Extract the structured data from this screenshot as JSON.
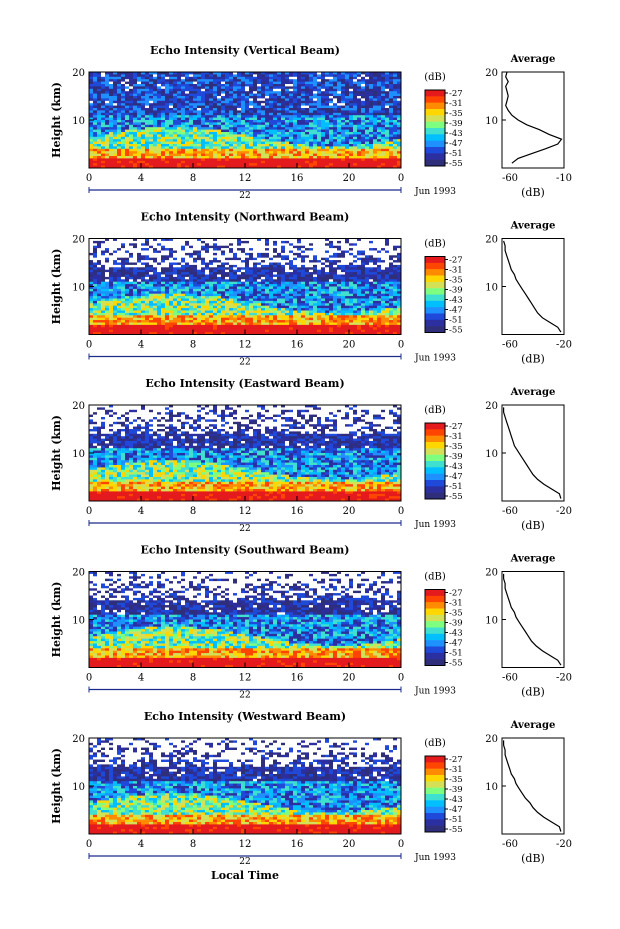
{
  "figure": {
    "xlabel": "Local Time",
    "colorbar": {
      "unit": "(dB)",
      "ticks": [
        "-27",
        "-31",
        "-35",
        "-39",
        "-43",
        "-47",
        "-51",
        "-55"
      ],
      "colors": [
        "#e41a1c",
        "#ff4500",
        "#ff8c00",
        "#ffd700",
        "#d4e157",
        "#7fff7f",
        "#40e0d0",
        "#00bfff",
        "#1e90ff",
        "#1f49d9",
        "#2b2fa0",
        "#2e2e7a"
      ]
    }
  },
  "chart_data": [
    {
      "type": "heatmap",
      "title": "Echo Intensity (Vertical Beam)",
      "ylabel": "Height (km)",
      "x_ticks": [
        "0",
        "4",
        "8",
        "12",
        "16",
        "20",
        "0"
      ],
      "ylim": [
        0,
        20
      ],
      "y_ticks": [
        "20",
        "10"
      ],
      "date_label": "Jun 1993",
      "day_label": "22",
      "average": {
        "title": "Average",
        "xlabel": "(dB)",
        "x_ticks": [
          "-60",
          "-10"
        ],
        "xlim": [
          -60,
          -10
        ],
        "y_ticks": [
          "20",
          "10"
        ],
        "profile": [
          [
            -52,
            1
          ],
          [
            -47,
            2
          ],
          [
            -36,
            3
          ],
          [
            -25,
            4
          ],
          [
            -15,
            5
          ],
          [
            -12,
            6
          ],
          [
            -22,
            7
          ],
          [
            -30,
            8
          ],
          [
            -40,
            9
          ],
          [
            -47,
            10
          ],
          [
            -52,
            11
          ],
          [
            -55,
            12
          ],
          [
            -57,
            13
          ],
          [
            -56,
            14
          ],
          [
            -55,
            15
          ],
          [
            -56,
            16
          ],
          [
            -57,
            17
          ],
          [
            -55,
            18
          ],
          [
            -57,
            19
          ],
          [
            -56,
            20
          ]
        ]
      }
    },
    {
      "type": "heatmap",
      "title": "Echo Intensity (Northward Beam)",
      "ylabel": "Height (km)",
      "x_ticks": [
        "0",
        "4",
        "8",
        "12",
        "16",
        "20",
        "0"
      ],
      "ylim": [
        0,
        20
      ],
      "y_ticks": [
        "20",
        "10"
      ],
      "date_label": "Jun 1993",
      "day_label": "22",
      "average": {
        "title": "Average",
        "xlabel": "(dB)",
        "x_ticks": [
          "-60",
          "-20"
        ],
        "xlim": [
          -60,
          -20
        ],
        "y_ticks": [
          "20",
          "10"
        ],
        "profile": [
          [
            -22,
            0.5
          ],
          [
            -24,
            1.5
          ],
          [
            -29,
            2.5
          ],
          [
            -34,
            3.5
          ],
          [
            -37,
            4.5
          ],
          [
            -39,
            5.5
          ],
          [
            -41,
            6.5
          ],
          [
            -43,
            7.5
          ],
          [
            -45,
            8.5
          ],
          [
            -47,
            9.5
          ],
          [
            -49,
            10.5
          ],
          [
            -51,
            11.5
          ],
          [
            -52,
            12.5
          ],
          [
            -54,
            13.5
          ],
          [
            -55,
            14.5
          ],
          [
            -56,
            15.5
          ],
          [
            -57,
            16.5
          ],
          [
            -58,
            17.5
          ],
          [
            -58,
            18.5
          ],
          [
            -59,
            19.5
          ]
        ]
      }
    },
    {
      "type": "heatmap",
      "title": "Echo Intensity (Eastward Beam)",
      "ylabel": "Height (km)",
      "x_ticks": [
        "0",
        "4",
        "8",
        "12",
        "16",
        "20",
        "0"
      ],
      "ylim": [
        0,
        20
      ],
      "y_ticks": [
        "20",
        "10"
      ],
      "date_label": "Jun 1993",
      "day_label": "22",
      "average": {
        "title": "Average",
        "xlabel": "(dB)",
        "x_ticks": [
          "-60",
          "-20"
        ],
        "xlim": [
          -60,
          -20
        ],
        "y_ticks": [
          "20",
          "10"
        ],
        "profile": [
          [
            -22,
            0.5
          ],
          [
            -23,
            1.5
          ],
          [
            -28,
            2.5
          ],
          [
            -33,
            3.5
          ],
          [
            -37,
            4.5
          ],
          [
            -40,
            5.5
          ],
          [
            -42,
            6.5
          ],
          [
            -44,
            7.5
          ],
          [
            -46,
            8.5
          ],
          [
            -48,
            9.5
          ],
          [
            -50,
            10.5
          ],
          [
            -52,
            11.5
          ],
          [
            -53,
            12.5
          ],
          [
            -54,
            13.5
          ],
          [
            -55,
            14.5
          ],
          [
            -56,
            15.5
          ],
          [
            -57,
            16.5
          ],
          [
            -58,
            17.5
          ],
          [
            -59,
            18.5
          ],
          [
            -59,
            19.5
          ]
        ]
      }
    },
    {
      "type": "heatmap",
      "title": "Echo Intensity (Southward Beam)",
      "ylabel": "Height (km)",
      "x_ticks": [
        "0",
        "4",
        "8",
        "12",
        "16",
        "20",
        "0"
      ],
      "ylim": [
        0,
        20
      ],
      "y_ticks": [
        "20",
        "10"
      ],
      "date_label": "Jun 1993",
      "day_label": "22",
      "average": {
        "title": "Average",
        "xlabel": "(dB)",
        "x_ticks": [
          "-60",
          "-20"
        ],
        "xlim": [
          -60,
          -20
        ],
        "y_ticks": [
          "20",
          "10"
        ],
        "profile": [
          [
            -22,
            0.5
          ],
          [
            -24,
            1.5
          ],
          [
            -29,
            2.5
          ],
          [
            -34,
            3.5
          ],
          [
            -38,
            4.5
          ],
          [
            -41,
            5.5
          ],
          [
            -43,
            6.5
          ],
          [
            -45,
            7.5
          ],
          [
            -47,
            8.5
          ],
          [
            -49,
            9.5
          ],
          [
            -51,
            10.5
          ],
          [
            -52,
            11.5
          ],
          [
            -54,
            12.5
          ],
          [
            -55,
            13.5
          ],
          [
            -56,
            14.5
          ],
          [
            -57,
            15.5
          ],
          [
            -58,
            16.5
          ],
          [
            -58,
            17.5
          ],
          [
            -59,
            18.5
          ],
          [
            -59,
            19.5
          ]
        ]
      }
    },
    {
      "type": "heatmap",
      "title": "Echo Intensity (Westward Beam)",
      "ylabel": "Height (km)",
      "x_ticks": [
        "0",
        "4",
        "8",
        "12",
        "16",
        "20",
        "0"
      ],
      "ylim": [
        0,
        20
      ],
      "y_ticks": [
        "20",
        "10"
      ],
      "date_label": "Jun 1993",
      "day_label": "22",
      "average": {
        "title": "Average",
        "xlabel": "(dB)",
        "x_ticks": [
          "-60",
          "-20"
        ],
        "xlim": [
          -60,
          -20
        ],
        "y_ticks": [
          "20",
          "10"
        ],
        "profile": [
          [
            -22,
            0.5
          ],
          [
            -23,
            1.5
          ],
          [
            -28,
            2.5
          ],
          [
            -33,
            3.5
          ],
          [
            -37,
            4.5
          ],
          [
            -40,
            5.5
          ],
          [
            -42,
            6.5
          ],
          [
            -45,
            7.5
          ],
          [
            -47,
            8.5
          ],
          [
            -49,
            9.5
          ],
          [
            -51,
            10.5
          ],
          [
            -52,
            11.5
          ],
          [
            -54,
            12.5
          ],
          [
            -55,
            13.5
          ],
          [
            -56,
            14.5
          ],
          [
            -57,
            15.5
          ],
          [
            -58,
            16.5
          ],
          [
            -58,
            17.5
          ],
          [
            -59,
            18.5
          ],
          [
            -59,
            19.5
          ]
        ]
      }
    }
  ]
}
